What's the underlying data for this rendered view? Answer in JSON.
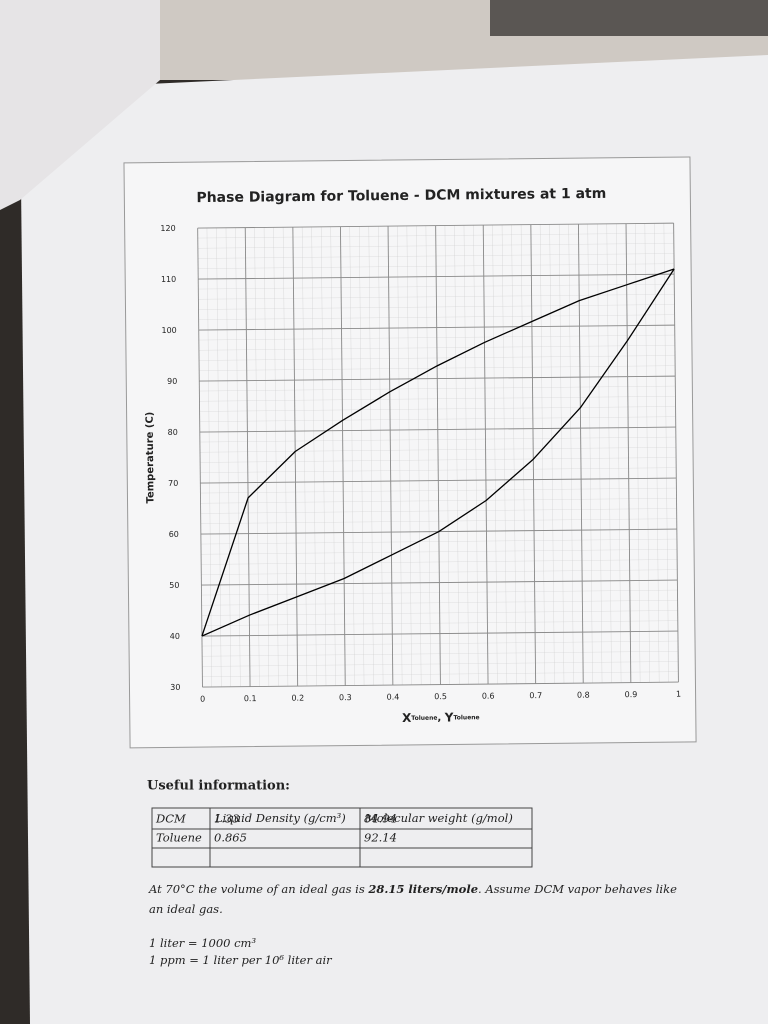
{
  "chart_data": {
    "type": "line",
    "title": "Phase Diagram for Toluene - DCM mixtures at 1 atm",
    "ylabel": "Temperature (C)",
    "xlabel_parts": [
      "X",
      "Toluene",
      ", ",
      "Y",
      "Toluene"
    ],
    "x": [
      0,
      0.1,
      0.2,
      0.3,
      0.4,
      0.5,
      0.6,
      0.7,
      0.8,
      0.9,
      1
    ],
    "series": [
      {
        "color": "#000000",
        "values": [
          40,
          67,
          76,
          82,
          87.5,
          92.5,
          97,
          101,
          105,
          108,
          111
        ]
      },
      {
        "color": "#000000",
        "values": [
          40,
          44,
          47.5,
          51,
          55.5,
          60,
          66,
          74,
          84,
          97,
          111
        ]
      }
    ],
    "xlim": [
      0,
      1
    ],
    "xticks": [
      0,
      0.1,
      0.2,
      0.3,
      0.4,
      0.5,
      0.6,
      0.7,
      0.8,
      0.9,
      1
    ],
    "ylim": [
      30,
      120
    ],
    "yticks": [
      30,
      40,
      50,
      60,
      70,
      80,
      90,
      100,
      110,
      120
    ],
    "grid": true
  },
  "info": {
    "heading": "Useful information:",
    "table": {
      "header": [
        "Liquid Density (g/cm³)",
        "Molecular weight (g/mol)"
      ],
      "rows": [
        [
          "DCM",
          1.33,
          84.94
        ],
        [
          "Toluene",
          0.865,
          92.14
        ]
      ]
    },
    "note": [
      "At 70°C the volume of an ideal gas is ",
      "28.15 liters/mole",
      ". Assume DCM vapor behaves like",
      "an ideal gas."
    ],
    "conversions": [
      "1 liter = 1000 cm³",
      "1 ppm = 1 liter per 10⁶ liter air"
    ]
  }
}
